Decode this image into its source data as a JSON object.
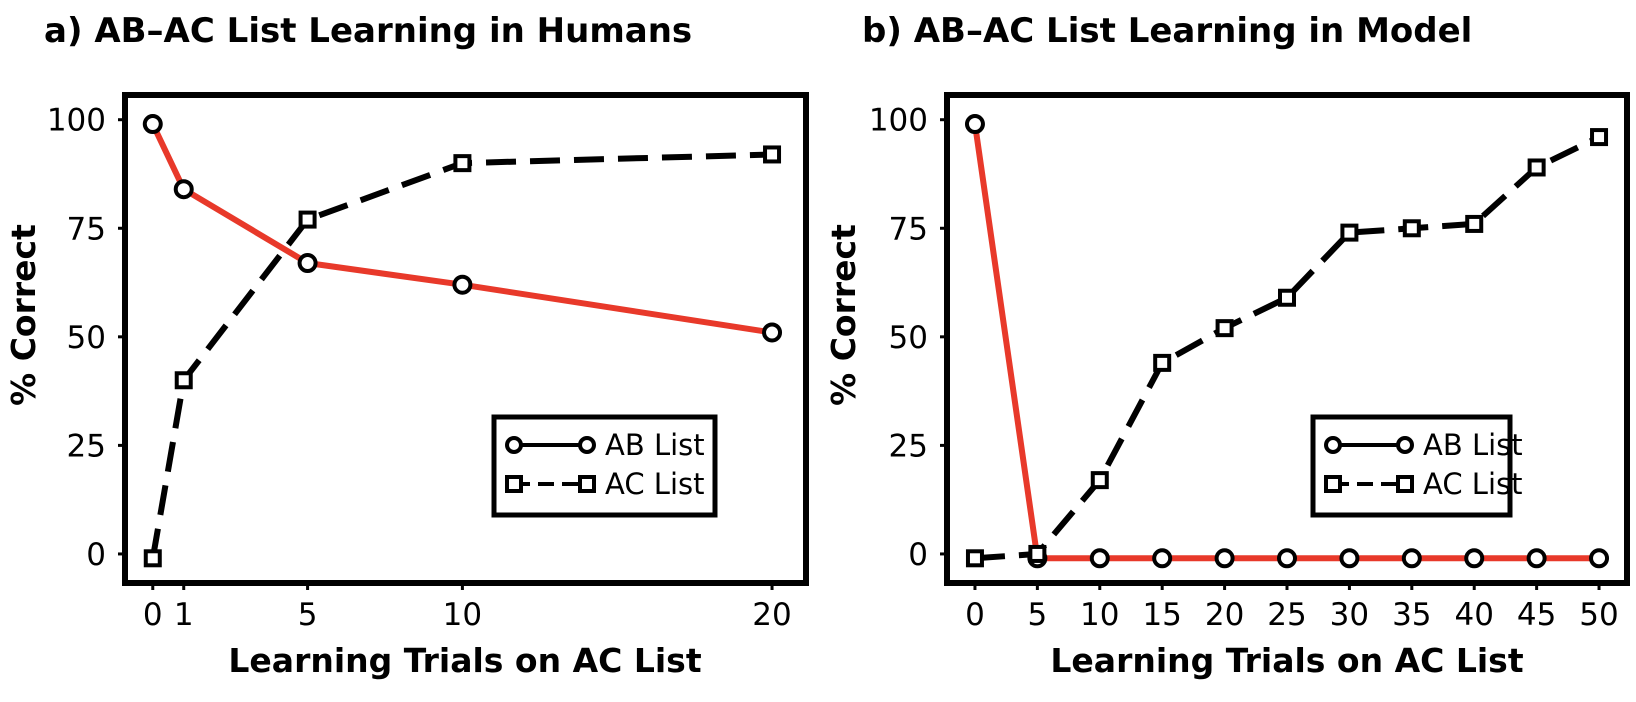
{
  "chart_data": [
    {
      "type": "line",
      "title": "a) AB–AC List Learning in Humans",
      "xlabel": "Learning Trials on AC List",
      "ylabel": "% Correct",
      "xticks": [
        0,
        1,
        5,
        10,
        20
      ],
      "yticks": [
        0,
        25,
        50,
        75,
        100
      ],
      "xlim": [
        -0.8,
        21
      ],
      "ylim": [
        -6,
        105
      ],
      "grid": false,
      "legend_position": "lower-right",
      "series": [
        {
          "name": "AB List",
          "x": [
            0,
            1,
            5,
            10,
            20
          ],
          "values": [
            99,
            84,
            67,
            62,
            51
          ],
          "color": "#e8392a",
          "marker": "circle",
          "linestyle": "solid"
        },
        {
          "name": "AC List",
          "x": [
            0,
            1,
            5,
            10,
            20
          ],
          "values": [
            -1,
            40,
            77,
            90,
            92
          ],
          "color": "#000000",
          "marker": "square",
          "linestyle": "dashed"
        }
      ]
    },
    {
      "type": "line",
      "title": "b) AB–AC List Learning in Model",
      "xlabel": "Learning Trials on AC List",
      "ylabel": "% Correct",
      "xticks": [
        0,
        5,
        10,
        15,
        20,
        25,
        30,
        35,
        40,
        45,
        50
      ],
      "yticks": [
        0,
        25,
        50,
        75,
        100
      ],
      "xlim": [
        -2,
        52
      ],
      "ylim": [
        -6,
        105
      ],
      "grid": false,
      "legend_position": "lower-right",
      "series": [
        {
          "name": "AB List",
          "x": [
            0,
            5,
            10,
            15,
            20,
            25,
            30,
            35,
            40,
            45,
            50
          ],
          "values": [
            99,
            -1,
            -1,
            -1,
            -1,
            -1,
            -1,
            -1,
            -1,
            -1,
            -1
          ],
          "color": "#e8392a",
          "marker": "circle",
          "linestyle": "solid"
        },
        {
          "name": "AC List",
          "x": [
            0,
            5,
            10,
            15,
            20,
            25,
            30,
            35,
            40,
            45,
            50
          ],
          "values": [
            -1,
            0,
            17,
            44,
            52,
            59,
            74,
            75,
            76,
            89,
            96
          ],
          "color": "#000000",
          "marker": "square",
          "linestyle": "dashed"
        }
      ]
    }
  ]
}
